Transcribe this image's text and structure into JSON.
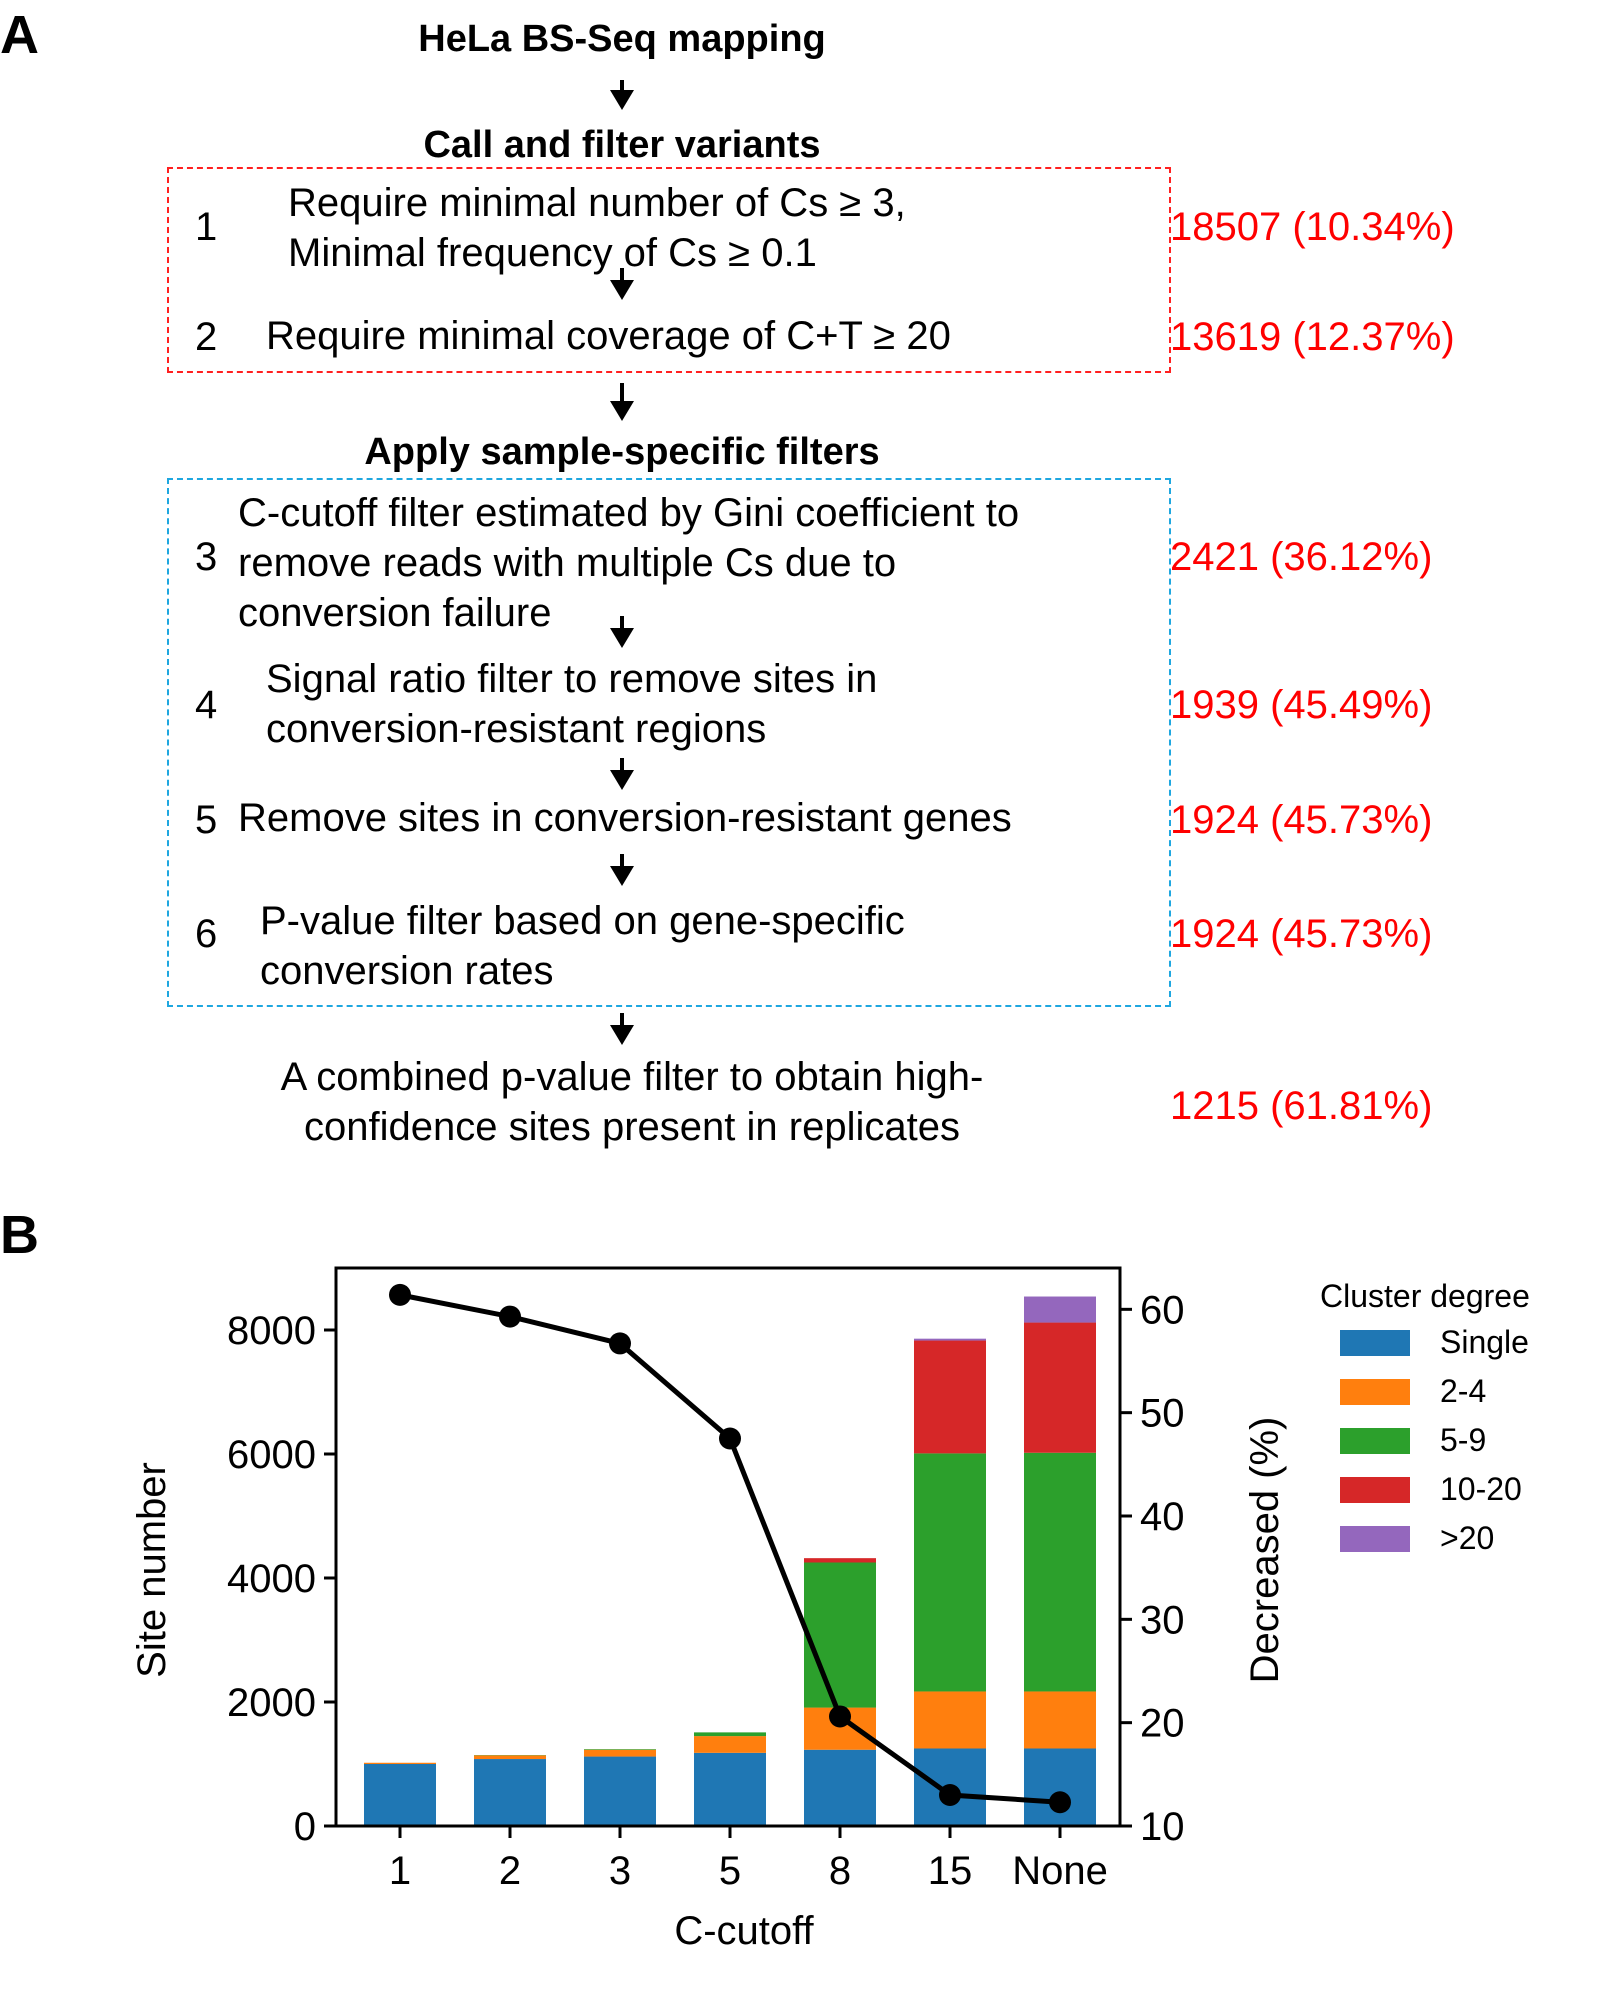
{
  "panel_a": {
    "label": "A",
    "title": "HeLa BS-Seq mapping",
    "section1_title": "Call and filter variants",
    "section2_title": "Apply sample-specific filters",
    "steps": [
      {
        "num": "1",
        "lines": [
          "Require minimal number of Cs ≥ 3,",
          "Minimal frequency of Cs ≥ 0.1"
        ],
        "count": "18507 (10.34%)"
      },
      {
        "num": "2",
        "lines": [
          "Require minimal coverage of C+T ≥ 20"
        ],
        "count": "13619 (12.37%)"
      },
      {
        "num": "3",
        "lines": [
          "C-cutoff filter estimated by Gini coefficient to",
          "remove reads with multiple Cs due to",
          "conversion failure"
        ],
        "count": "2421 (36.12%)"
      },
      {
        "num": "4",
        "lines": [
          "Signal ratio filter to remove sites in",
          "conversion-resistant regions"
        ],
        "count": "1939 (45.49%)"
      },
      {
        "num": "5",
        "lines": [
          "Remove sites in conversion-resistant genes"
        ],
        "count": "1924 (45.73%)"
      },
      {
        "num": "6",
        "lines": [
          "P-value filter based on gene-specific",
          "conversion rates"
        ],
        "count": "1924 (45.73%)"
      }
    ],
    "final": {
      "lines": [
        "A combined p-value filter to obtain high-",
        "confidence sites present in replicates"
      ],
      "count": "1215 (61.81%)"
    }
  },
  "panel_b": {
    "label": "B"
  },
  "chart_data": {
    "type": "bar",
    "stacked": true,
    "categories": [
      "1",
      "2",
      "3",
      "5",
      "8",
      "15",
      "None"
    ],
    "xlabel": "C-cutoff",
    "ylabel": "Site number",
    "y2label": "Decreased (%)",
    "ylim": [
      0,
      9000
    ],
    "y2lim": [
      10,
      64
    ],
    "yticks": [
      0,
      2000,
      4000,
      6000,
      8000
    ],
    "y2ticks": [
      10,
      20,
      30,
      40,
      50,
      60
    ],
    "legend_title": "Cluster degree",
    "legend_position": "right",
    "series": [
      {
        "name": "Single",
        "color": "#1f77b4",
        "values": [
          1000,
          1080,
          1120,
          1180,
          1230,
          1250,
          1250
        ]
      },
      {
        "name": "2-4",
        "color": "#ff7f0e",
        "values": [
          20,
          60,
          110,
          270,
          680,
          920,
          920
        ]
      },
      {
        "name": "5-9",
        "color": "#2ca02c",
        "values": [
          0,
          5,
          10,
          60,
          2340,
          3840,
          3850
        ]
      },
      {
        "name": "10-20",
        "color": "#d62728",
        "values": [
          0,
          0,
          0,
          0,
          70,
          1820,
          2100
        ]
      },
      {
        "name": ">20",
        "color": "#9467bd",
        "values": [
          0,
          0,
          0,
          0,
          0,
          30,
          420
        ]
      }
    ],
    "line": {
      "color": "#000000",
      "values": [
        61.4,
        59.3,
        56.7,
        47.5,
        20.6,
        13.0,
        12.3
      ]
    }
  }
}
